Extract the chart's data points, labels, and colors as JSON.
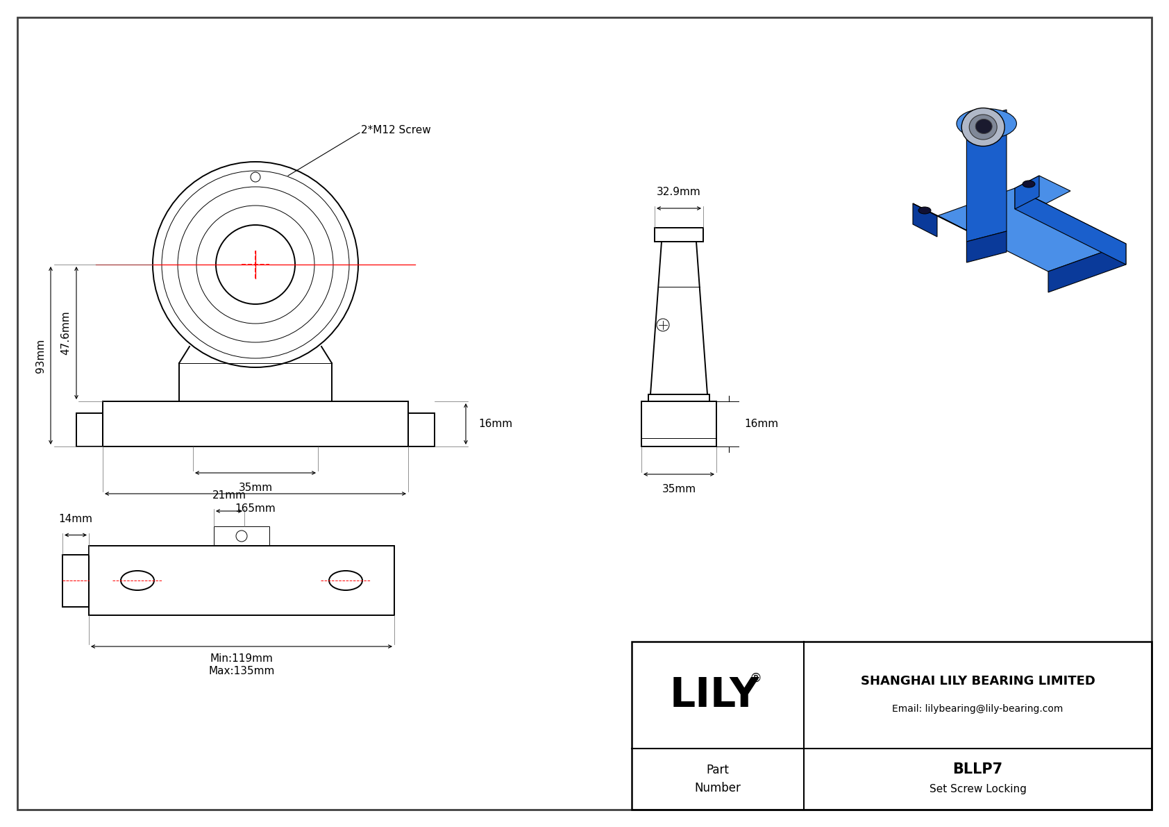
{
  "bg_color": "#ffffff",
  "line_color": "#000000",
  "lw_main": 1.4,
  "lw_thin": 0.7,
  "lw_dim": 0.8,
  "lw_border": 2.0,
  "dim_fs": 11,
  "company": "SHANGHAI LILY BEARING LIMITED",
  "email": "Email: lilybearing@lily-bearing.com",
  "part_number": "BLLP7",
  "locking": "Set Screw Locking",
  "part_label": "Part\nNumber",
  "lily_text": "LILY",
  "reg_symbol": "®",
  "screw_label": "2*M12 Screw",
  "dim_93": "93mm",
  "dim_476": "47.6mm",
  "dim_35f": "35mm",
  "dim_165": "165mm",
  "dim_16": "16mm",
  "dim_329": "32.9mm",
  "dim_35s": "35mm",
  "dim_21": "21mm",
  "dim_14": "14mm",
  "dim_min": "Min:119mm",
  "dim_max": "Max:135mm",
  "blue": "#1a5fcc",
  "blue_light": "#4a8fe8",
  "blue_mid": "#2266dd",
  "blue_dark": "#0a3a9a",
  "silver": "#b0b8c8",
  "silver_dark": "#808898"
}
